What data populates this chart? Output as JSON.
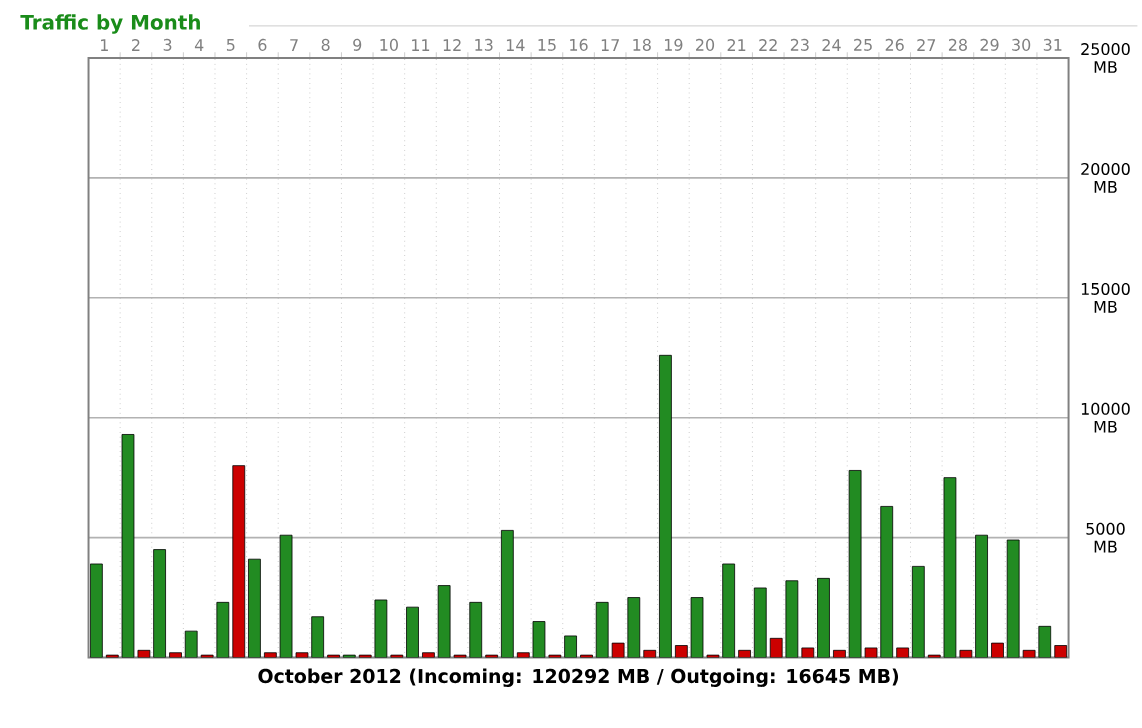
{
  "chart_data": {
    "type": "bar",
    "title": "Traffic by Month",
    "xlabel": "October 2012 (Incoming: 120292 MB / Outgoing: 16645 MB)",
    "categories": [
      "1",
      "2",
      "3",
      "4",
      "5",
      "6",
      "7",
      "8",
      "9",
      "10",
      "11",
      "12",
      "13",
      "14",
      "15",
      "16",
      "17",
      "18",
      "19",
      "20",
      "21",
      "22",
      "23",
      "24",
      "25",
      "26",
      "27",
      "28",
      "29",
      "30",
      "31"
    ],
    "series": [
      {
        "color": "#228b22",
        "values": [
          3900,
          9300,
          4500,
          1100,
          2300,
          4100,
          5100,
          1700,
          100,
          2400,
          2100,
          3000,
          2300,
          5300,
          1500,
          900,
          2300,
          2500,
          12600,
          2500,
          3900,
          2900,
          3200,
          3300,
          7800,
          6300,
          3800,
          7500,
          5100,
          4900,
          1300
        ]
      },
      {
        "color": "#cc0000",
        "values": [
          100,
          300,
          200,
          100,
          8000,
          200,
          200,
          100,
          100,
          100,
          200,
          100,
          100,
          200,
          100,
          100,
          600,
          300,
          500,
          100,
          300,
          800,
          400,
          300,
          400,
          400,
          100,
          300,
          600,
          300,
          500
        ]
      }
    ],
    "ylim": [
      0,
      25000
    ],
    "yticks": [
      {
        "value": 5000,
        "label": "5000 MB"
      },
      {
        "value": 10000,
        "label": "10000 MB"
      },
      {
        "value": 15000,
        "label": "15000 MB"
      },
      {
        "value": 20000,
        "label": "20000 MB"
      },
      {
        "value": 25000,
        "label": "25000 MB"
      }
    ],
    "grid": true
  }
}
